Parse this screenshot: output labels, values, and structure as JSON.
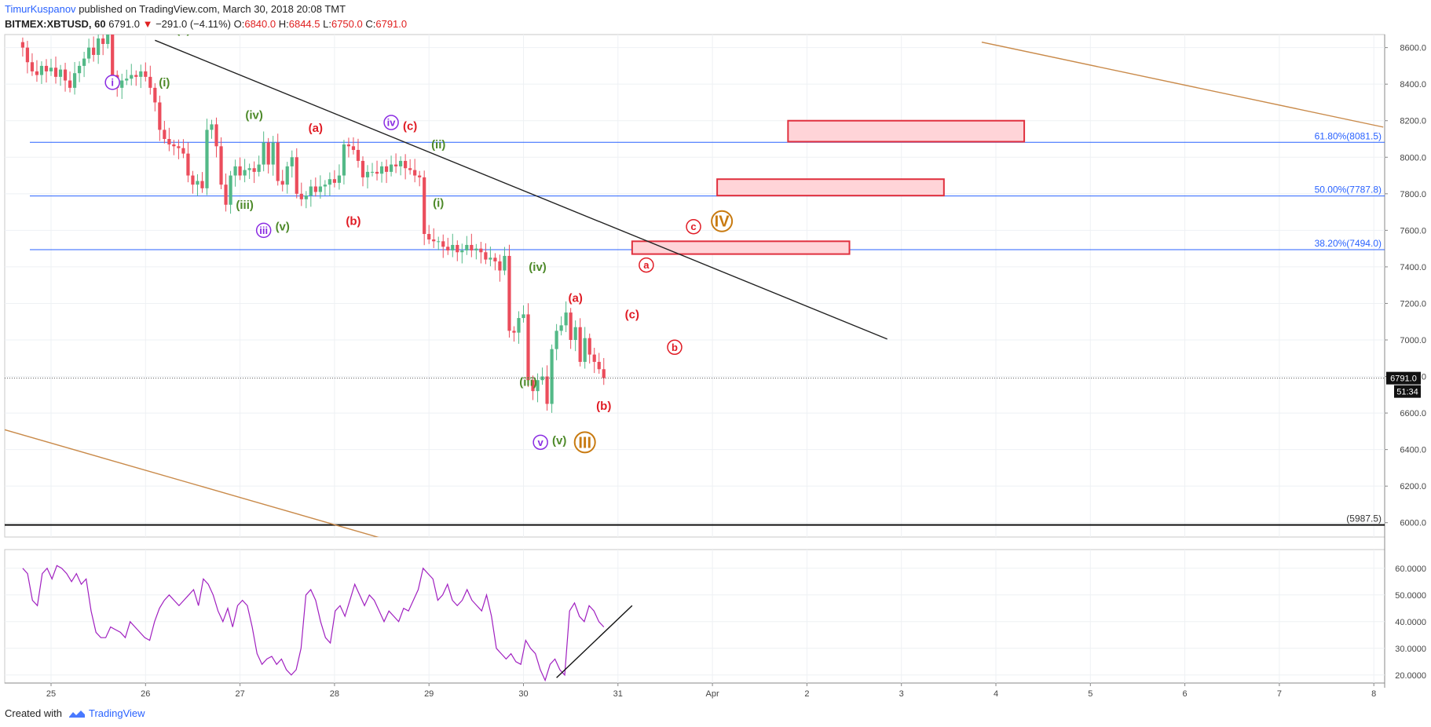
{
  "header": {
    "author": "TimurKuspanov",
    "published": "published on TradingView.com, March 30, 2018 20:08 TMT",
    "symbol": "BITMEX:XBTUSD, 60",
    "price": "6791.0",
    "change": "−291.0 (−4.11%)",
    "ohlc": {
      "o_label": "O:",
      "o": "6840.0",
      "h_label": "H:",
      "h": "6844.5",
      "l_label": "L:",
      "l": "6750.0",
      "c_label": "C:",
      "c": "6791.0"
    }
  },
  "footer": {
    "created_with": "Created with",
    "brand": "TradingView"
  },
  "colors": {
    "up": "#53b987",
    "down": "#eb4d5c",
    "fib": "#2962ff",
    "trend": "#222222",
    "channel": "#c98a4a",
    "rsi": "#a020c0",
    "zone_fill": "#ffd4d8",
    "zone_stroke": "#e0303e",
    "wave_purple": "#8a2be2",
    "wave_green": "#4e8a2a",
    "wave_red": "#e01b24",
    "wave_orange": "#c87a10"
  },
  "chart_data": [
    {
      "type": "candlestick",
      "title": "",
      "x_axis": {
        "ticks": [
          "25",
          "26",
          "27",
          "28",
          "29",
          "30",
          "31",
          "Apr",
          "2",
          "3",
          "4",
          "5",
          "6",
          "7",
          "8"
        ]
      },
      "ylim": [
        5900,
        8650
      ],
      "y_axis": {
        "ticks": [
          "6000.0",
          "6200.0",
          "6400.0",
          "6600.0",
          "6800.0",
          "7000.0",
          "7200.0",
          "7400.0",
          "7600.0",
          "7800.0",
          "8000.0",
          "8200.0",
          "8400.0",
          "8600.0"
        ]
      },
      "candles_day_range": [
        24.7,
        30.85
      ],
      "candles_close": [
        8600,
        8520,
        8470,
        8450,
        8500,
        8470,
        8490,
        8440,
        8480,
        8420,
        8380,
        8460,
        8500,
        8540,
        8600,
        8560,
        8650,
        8620,
        8700,
        8450,
        8380,
        8420,
        8430,
        8450,
        8440,
        8470,
        8440,
        8380,
        8300,
        8150,
        8100,
        8070,
        8060,
        8050,
        8020,
        7900,
        7850,
        7870,
        7830,
        8150,
        8180,
        8060,
        7850,
        7740,
        7900,
        7950,
        7900,
        7930,
        7940,
        7920,
        7960,
        8080,
        7960,
        8080,
        7870,
        7850,
        7950,
        8000,
        7800,
        7770,
        7790,
        7840,
        7810,
        7840,
        7850,
        7880,
        7860,
        7900,
        8070,
        8060,
        8040,
        7980,
        7890,
        7920,
        7920,
        7910,
        7950,
        7920,
        7960,
        7950,
        7980,
        7940,
        7930,
        7900,
        7890,
        7580,
        7550,
        7540,
        7540,
        7510,
        7490,
        7520,
        7480,
        7490,
        7520,
        7490,
        7500,
        7480,
        7440,
        7450,
        7430,
        7380,
        7460,
        7050,
        7040,
        7120,
        7140,
        6780,
        6720,
        6780,
        6800,
        6650,
        6950,
        7050,
        7080,
        7150,
        7000,
        7070,
        6880,
        7010,
        6920,
        6880,
        6840,
        6791
      ],
      "price_labels": {
        "last": "6791.0",
        "countdown": "51:34"
      },
      "horizontal_levels": [
        {
          "label": "61.80%(8081.5)",
          "value": 8081.5
        },
        {
          "label": "50.00%(7787.8)",
          "value": 7787.8
        },
        {
          "label": "38.20%(7494.0)",
          "value": 7494.0
        },
        {
          "label": "(5987.5)",
          "value": 5987.5
        }
      ],
      "target_zones": [
        {
          "day_from": 31.15,
          "day_to": 33.45,
          "low": 7470,
          "high": 7540
        },
        {
          "day_from": 32.05,
          "day_to": 34.45,
          "low": 7790,
          "high": 7880
        },
        {
          "day_from": 32.8,
          "day_to": 35.3,
          "low": 8085,
          "high": 8200
        }
      ],
      "trendlines": [
        {
          "kind": "descending",
          "x0": 26.1,
          "y0": 8640,
          "x1": 33.85,
          "y1": 7005
        },
        {
          "kind": "channel-upper",
          "x0": 34.85,
          "y0": 8630,
          "x1": 39.1,
          "y1": 8165
        },
        {
          "kind": "channel-lower",
          "x0": 24.5,
          "y0": 6510,
          "x1": 28.9,
          "y1": 5855
        }
      ],
      "wave_labels": [
        {
          "text": "i",
          "style": "circle",
          "color": "purple",
          "day": 25.65,
          "price": 8410
        },
        {
          "text": "(i)",
          "style": "plain",
          "color": "green",
          "day": 26.2,
          "price": 8410
        },
        {
          "text": "(ii)",
          "style": "plain",
          "color": "green",
          "day": 26.4,
          "price": 8700
        },
        {
          "text": "(iv)",
          "style": "plain",
          "color": "green",
          "day": 27.15,
          "price": 8230
        },
        {
          "text": "(a)",
          "style": "plain",
          "color": "red",
          "day": 27.8,
          "price": 8160
        },
        {
          "text": "iv",
          "style": "circle",
          "color": "purple",
          "day": 28.6,
          "price": 8190
        },
        {
          "text": "(c)",
          "style": "plain",
          "color": "red",
          "day": 28.8,
          "price": 8170
        },
        {
          "text": "(ii)",
          "style": "plain",
          "color": "green",
          "day": 29.1,
          "price": 8070
        },
        {
          "text": "(iii)",
          "style": "plain",
          "color": "green",
          "day": 27.05,
          "price": 7740
        },
        {
          "text": "iii",
          "style": "circle",
          "color": "purple",
          "day": 27.25,
          "price": 7600
        },
        {
          "text": "(v)",
          "style": "plain",
          "color": "green",
          "day": 27.45,
          "price": 7620
        },
        {
          "text": "(b)",
          "style": "plain",
          "color": "red",
          "day": 28.2,
          "price": 7650
        },
        {
          "text": "(i)",
          "style": "plain",
          "color": "green",
          "day": 29.1,
          "price": 7750
        },
        {
          "text": "(iv)",
          "style": "plain",
          "color": "green",
          "day": 30.15,
          "price": 7400
        },
        {
          "text": "(a)",
          "style": "plain",
          "color": "red",
          "day": 30.55,
          "price": 7230
        },
        {
          "text": "(c)",
          "style": "plain",
          "color": "red",
          "day": 31.15,
          "price": 7140
        },
        {
          "text": "(iii)",
          "style": "plain",
          "color": "green",
          "day": 30.05,
          "price": 6770
        },
        {
          "text": "(b)",
          "style": "plain",
          "color": "red",
          "day": 30.85,
          "price": 6640
        },
        {
          "text": "v",
          "style": "circle",
          "color": "purple",
          "day": 30.18,
          "price": 6440
        },
        {
          "text": "(v)",
          "style": "plain",
          "color": "green",
          "day": 30.38,
          "price": 6450
        },
        {
          "text": "III",
          "style": "circle",
          "color": "orange",
          "day": 30.65,
          "price": 6440
        },
        {
          "text": "a",
          "style": "circle",
          "color": "red",
          "day": 31.3,
          "price": 7410
        },
        {
          "text": "b",
          "style": "circle",
          "color": "red",
          "day": 31.6,
          "price": 6960
        },
        {
          "text": "c",
          "style": "circle",
          "color": "red",
          "day": 31.8,
          "price": 7620
        },
        {
          "text": "IV",
          "style": "circle",
          "color": "orange",
          "day": 32.1,
          "price": 7650
        }
      ]
    },
    {
      "type": "line",
      "title": "",
      "ylim": [
        17,
        67
      ],
      "y_axis": {
        "ticks": [
          "20.0000",
          "30.0000",
          "40.0000",
          "50.0000",
          "60.0000"
        ]
      },
      "series": [
        {
          "name": "",
          "day_range": [
            24.7,
            30.85
          ],
          "values": [
            60,
            58,
            48,
            46,
            58,
            60,
            56,
            61,
            60,
            58,
            55,
            58,
            54,
            56,
            44,
            36,
            34,
            34,
            38,
            37,
            36,
            34,
            40,
            38,
            36,
            34,
            33,
            40,
            45,
            48,
            50,
            48,
            46,
            48,
            50,
            52,
            46,
            56,
            54,
            50,
            44,
            40,
            45,
            38,
            46,
            48,
            46,
            38,
            28,
            24,
            26,
            27,
            24,
            26,
            22,
            20,
            22,
            30,
            50,
            52,
            48,
            40,
            34,
            32,
            44,
            46,
            42,
            48,
            54,
            50,
            46,
            50,
            48,
            44,
            40,
            44,
            42,
            40,
            45,
            44,
            48,
            52,
            60,
            58,
            56,
            48,
            50,
            54,
            48,
            46,
            48,
            52,
            48,
            46,
            44,
            50,
            42,
            30,
            28,
            26,
            28,
            25,
            24,
            33,
            30,
            28,
            22,
            18,
            24,
            26,
            22,
            20,
            44,
            47,
            42,
            40,
            46,
            44,
            40,
            38
          ]
        }
      ],
      "trendline": {
        "x0": 30.35,
        "y0": 19,
        "x1": 31.15,
        "y1": 46
      }
    }
  ]
}
